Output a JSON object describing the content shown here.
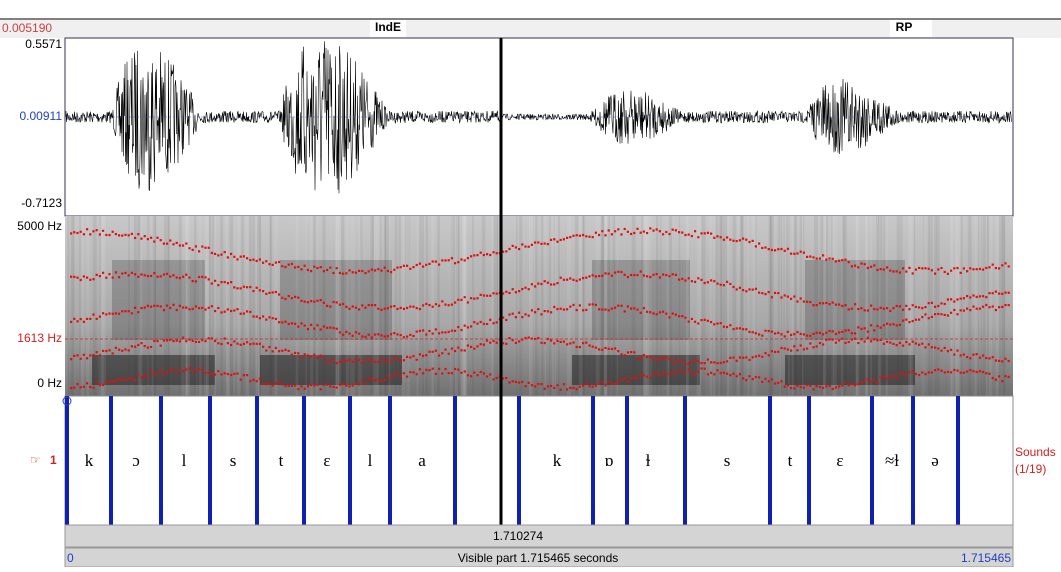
{
  "header": {
    "time": "0.005190",
    "left_label": "IndE",
    "right_label": "RP"
  },
  "waveform": {
    "max": "0.5571",
    "mid": "0.00911",
    "min": "-0.7123"
  },
  "spectrogram": {
    "top": "5000 Hz",
    "cursor": "1613 Hz",
    "bottom": "0 Hz"
  },
  "tier": {
    "number": "1",
    "name": "Sounds",
    "count": "(1/19)",
    "intervals": [
      "k",
      "ɔ",
      "l",
      "s",
      "t",
      "ɛ",
      "l",
      "a",
      "k",
      "ɒ",
      "ɫ",
      "s",
      "t",
      "ɛ",
      "≈ɫ",
      "ə"
    ]
  },
  "cursor_time": "1.710274",
  "footer": {
    "start": "0",
    "visible": "Visible part 1.715465 seconds",
    "end": "1.715465"
  }
}
